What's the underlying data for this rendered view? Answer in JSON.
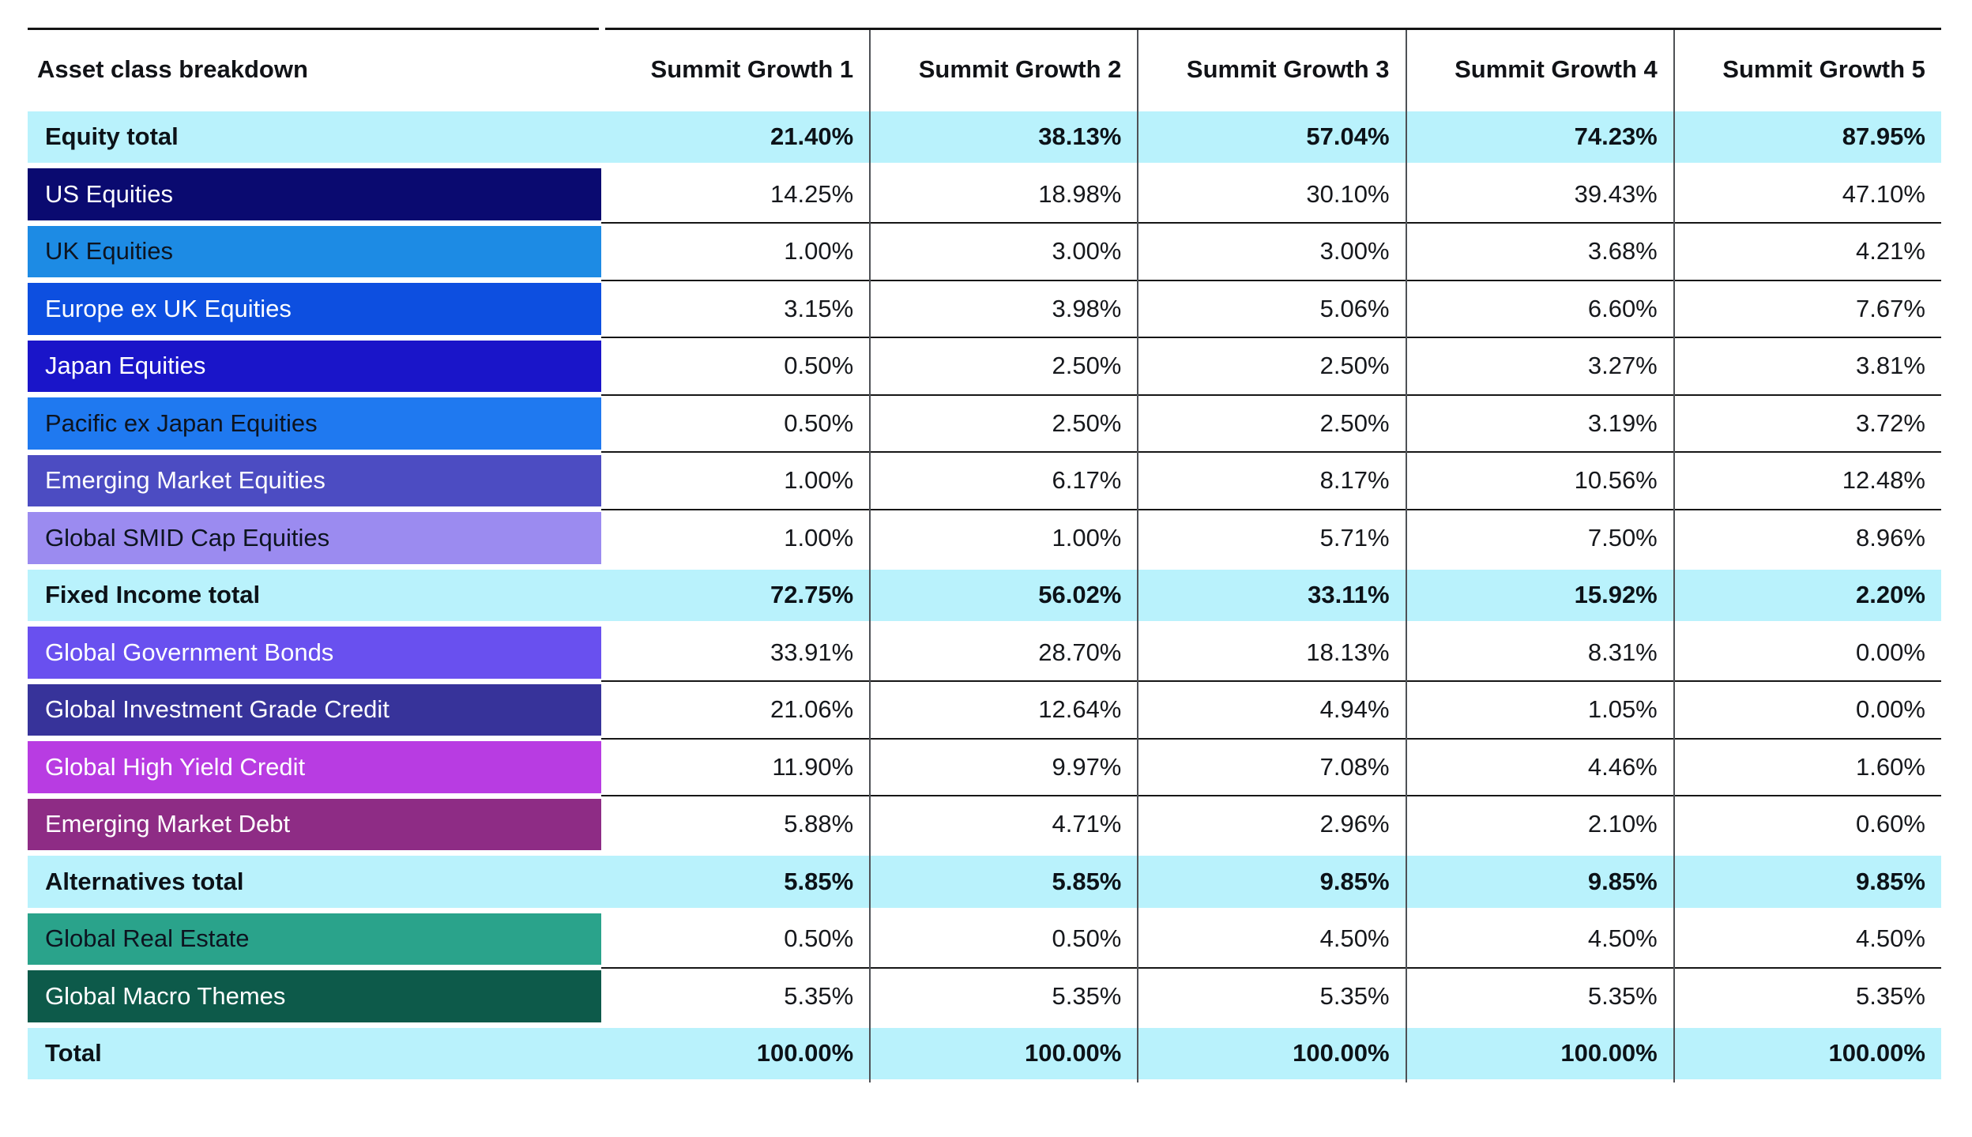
{
  "table": {
    "title": "Asset class breakdown",
    "columns": [
      "Summit Growth 1",
      "Summit Growth 2",
      "Summit Growth 3",
      "Summit Growth 4",
      "Summit Growth 5"
    ],
    "colors": {
      "highlight_row": "#b9f2fc",
      "top_border": "#141414",
      "column_divider": "#4e5156"
    },
    "rows": [
      {
        "label": "Equity total",
        "type": "total",
        "values": [
          "21.40%",
          "38.13%",
          "57.04%",
          "74.23%",
          "87.95%"
        ]
      },
      {
        "label": "US Equities",
        "type": "item",
        "bg": "#0a0a70",
        "fg": "#ffffff",
        "values": [
          "14.25%",
          "18.98%",
          "30.10%",
          "39.43%",
          "47.10%"
        ]
      },
      {
        "label": "UK Equities",
        "type": "item",
        "bg": "#1d8be4",
        "fg": "#0d1420",
        "values": [
          "1.00%",
          "3.00%",
          "3.00%",
          "3.68%",
          "4.21%"
        ]
      },
      {
        "label": "Europe ex UK Equities",
        "type": "item",
        "bg": "#0d4fe0",
        "fg": "#ffffff",
        "values": [
          "3.15%",
          "3.98%",
          "5.06%",
          "6.60%",
          "7.67%"
        ]
      },
      {
        "label": "Japan Equities",
        "type": "item",
        "bg": "#1a15c9",
        "fg": "#ffffff",
        "values": [
          "0.50%",
          "2.50%",
          "2.50%",
          "3.27%",
          "3.81%"
        ]
      },
      {
        "label": "Pacific ex Japan Equities",
        "type": "item",
        "bg": "#1f79f0",
        "fg": "#0d1420",
        "values": [
          "0.50%",
          "2.50%",
          "2.50%",
          "3.19%",
          "3.72%"
        ]
      },
      {
        "label": "Emerging Market Equities",
        "type": "item",
        "bg": "#4c4cc2",
        "fg": "#ffffff",
        "values": [
          "1.00%",
          "6.17%",
          "8.17%",
          "10.56%",
          "12.48%"
        ]
      },
      {
        "label": "Global SMID Cap Equities",
        "type": "item",
        "bg": "#9b8bf0",
        "fg": "#0d1420",
        "values": [
          "1.00%",
          "1.00%",
          "5.71%",
          "7.50%",
          "8.96%"
        ]
      },
      {
        "label": "Fixed Income total",
        "type": "total",
        "values": [
          "72.75%",
          "56.02%",
          "33.11%",
          "15.92%",
          "2.20%"
        ]
      },
      {
        "label": "Global Government Bonds",
        "type": "item",
        "bg": "#6950ef",
        "fg": "#ffffff",
        "values": [
          "33.91%",
          "28.70%",
          "18.13%",
          "8.31%",
          "0.00%"
        ]
      },
      {
        "label": "Global Investment Grade Credit",
        "type": "item",
        "bg": "#37339a",
        "fg": "#ffffff",
        "values": [
          "21.06%",
          "12.64%",
          "4.94%",
          "1.05%",
          "0.00%"
        ]
      },
      {
        "label": "Global High Yield Credit",
        "type": "item",
        "bg": "#b83ce2",
        "fg": "#ffffff",
        "values": [
          "11.90%",
          "9.97%",
          "7.08%",
          "4.46%",
          "1.60%"
        ]
      },
      {
        "label": "Emerging Market Debt",
        "type": "item",
        "bg": "#8e2c85",
        "fg": "#ffffff",
        "values": [
          "5.88%",
          "4.71%",
          "2.96%",
          "2.10%",
          "0.60%"
        ]
      },
      {
        "label": "Alternatives total",
        "type": "total",
        "values": [
          "5.85%",
          "5.85%",
          "9.85%",
          "9.85%",
          "9.85%"
        ]
      },
      {
        "label": "Global Real Estate",
        "type": "item",
        "bg": "#2aa38b",
        "fg": "#0d1420",
        "values": [
          "0.50%",
          "0.50%",
          "4.50%",
          "4.50%",
          "4.50%"
        ]
      },
      {
        "label": "Global Macro Themes",
        "type": "item",
        "bg": "#0d5a4a",
        "fg": "#ffffff",
        "values": [
          "5.35%",
          "5.35%",
          "5.35%",
          "5.35%",
          "5.35%"
        ]
      },
      {
        "label": "Total",
        "type": "total",
        "values": [
          "100.00%",
          "100.00%",
          "100.00%",
          "100.00%",
          "100.00%"
        ]
      }
    ]
  }
}
